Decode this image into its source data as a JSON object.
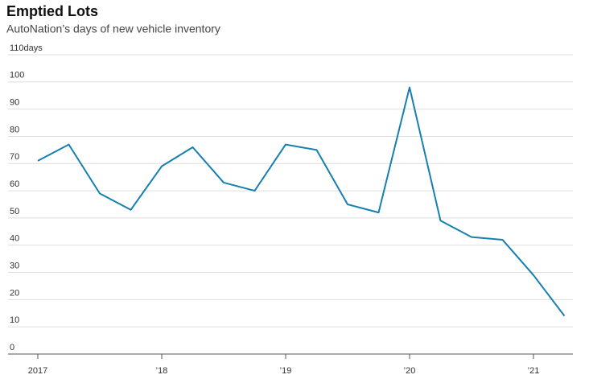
{
  "chart_data": {
    "type": "line",
    "title": "Emptied Lots",
    "subtitle": "AutoNation’s days of new vehicle inventory",
    "categories": [
      "2017",
      null,
      null,
      null,
      "’18",
      null,
      null,
      null,
      "’19",
      null,
      null,
      null,
      "’20",
      null,
      null,
      null,
      "’21",
      null
    ],
    "values": [
      71,
      77,
      59,
      53,
      69,
      76,
      63,
      60,
      77,
      75,
      55,
      52,
      98,
      49,
      43,
      42,
      29,
      14
    ],
    "color": "#1580b0",
    "ylim": [
      0,
      110
    ],
    "yticks": [
      0,
      10,
      20,
      30,
      40,
      50,
      60,
      70,
      80,
      90,
      100,
      {
        "value": 110,
        "label": "110days"
      }
    ],
    "grid": true
  }
}
